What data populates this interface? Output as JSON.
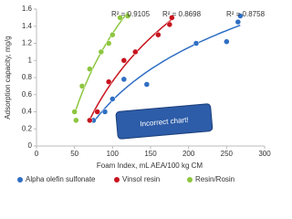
{
  "chart_data": {
    "type": "scatter",
    "x_label": "Foam Index, mL AEA/100 kg CM",
    "y_label": "Adsorption capacity, mg/g",
    "xlim": [
      0,
      300
    ],
    "xticks": [
      0,
      50,
      100,
      150,
      200,
      250,
      300
    ],
    "ylim": [
      0,
      1.6
    ],
    "yticks": [
      0,
      0.2,
      0.4,
      0.6,
      0.8,
      1,
      1.2,
      1.4,
      1.6
    ],
    "legend": "bottom",
    "annotation": "Incorrect chart!",
    "series": [
      {
        "name": "Alpha olefin sulfonate",
        "color": "#2f6fc4",
        "trend_label": "R² = 0.8758",
        "x": [
          75,
          90,
          100,
          115,
          145,
          210,
          250,
          265,
          268
        ],
        "values": [
          0.3,
          0.4,
          0.55,
          0.78,
          0.72,
          1.2,
          1.22,
          1.45,
          1.52
        ]
      },
      {
        "name": "Vinsol resin",
        "color": "#c8141e",
        "trend_label": "R² = 0.8698",
        "x": [
          70,
          80,
          95,
          115,
          130,
          160,
          175,
          178
        ],
        "values": [
          0.3,
          0.4,
          0.75,
          1.0,
          1.1,
          1.3,
          1.42,
          1.5
        ]
      },
      {
        "name": "Resin/Rosin",
        "color": "#8dc63f",
        "trend_label": "R² = 0.9105",
        "x": [
          50,
          52,
          60,
          70,
          85,
          95,
          100,
          110,
          120
        ],
        "values": [
          0.4,
          0.3,
          0.7,
          0.9,
          1.1,
          1.2,
          1.3,
          1.5,
          1.52
        ]
      }
    ]
  }
}
